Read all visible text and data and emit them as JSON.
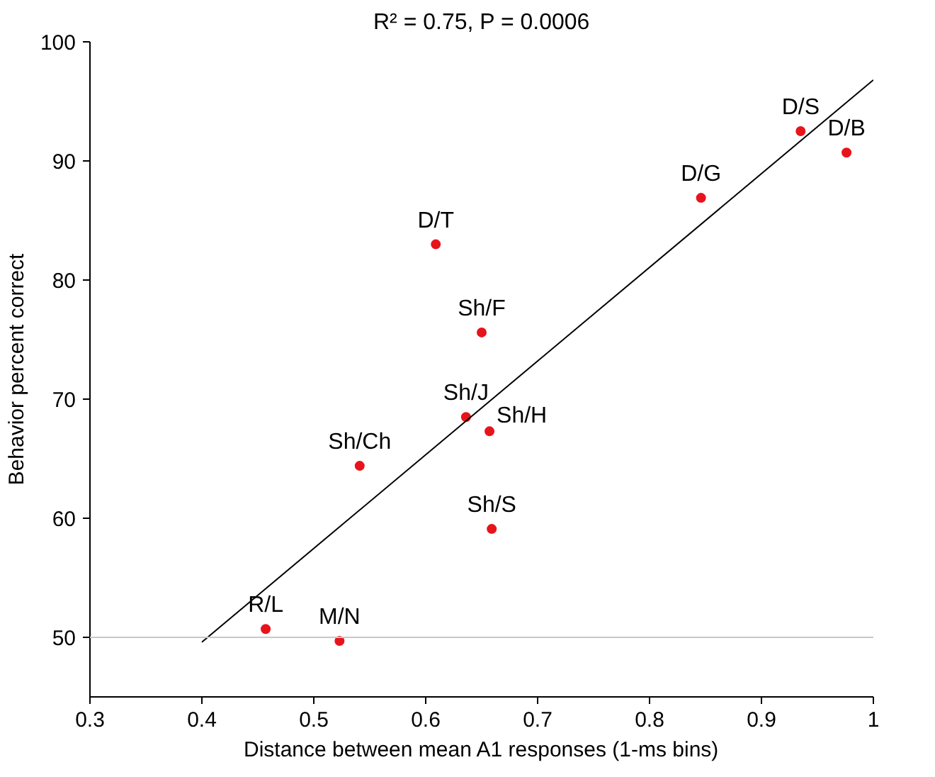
{
  "chart_data": {
    "type": "scatter",
    "title": "R² = 0.75, P = 0.0006",
    "xlabel": "Distance between mean A1 responses (1-ms bins)",
    "ylabel": "Behavior percent correct",
    "xlim": [
      0.3,
      1
    ],
    "ylim": [
      45,
      100
    ],
    "xticks": [
      0.3,
      0.4,
      0.5,
      0.6,
      0.7,
      0.8,
      0.9,
      {
        "value": 1,
        "label": "1"
      }
    ],
    "yticks": [
      50,
      60,
      70,
      80,
      90,
      100
    ],
    "grid": false,
    "series": [
      {
        "marker": "circle",
        "color": "#e8141c",
        "x": [
          0.457,
          0.523,
          0.541,
          0.636,
          0.657,
          0.659,
          0.609,
          0.65,
          0.846,
          0.935,
          0.976
        ],
        "values": [
          50.7,
          49.7,
          64.4,
          68.5,
          67.3,
          59.1,
          83.0,
          75.6,
          86.9,
          92.5,
          90.7
        ]
      },
      {
        "type": "line",
        "color": "#000000",
        "x": [
          0.4,
          1.0
        ],
        "values": [
          49.6,
          96.8
        ]
      }
    ],
    "ref_lines": [
      {
        "axis": "y",
        "value": 50,
        "color": "#c8c8c8"
      }
    ],
    "annotations": [
      {
        "text": "R/L",
        "x": 0.457,
        "y": 50.7
      },
      {
        "text": "M/N",
        "x": 0.523,
        "y": 49.7
      },
      {
        "text": "Sh/Ch",
        "x": 0.541,
        "y": 64.4
      },
      {
        "text": "Sh/J",
        "x": 0.636,
        "y": 68.5
      },
      {
        "text": "Sh/H",
        "x": 0.657,
        "y": 67.3
      },
      {
        "text": "Sh/S",
        "x": 0.659,
        "y": 59.1
      },
      {
        "text": "D/T",
        "x": 0.609,
        "y": 83.0
      },
      {
        "text": "Sh/F",
        "x": 0.65,
        "y": 75.6
      },
      {
        "text": "D/G",
        "x": 0.846,
        "y": 86.9
      },
      {
        "text": "D/S",
        "x": 0.935,
        "y": 92.5
      },
      {
        "text": "D/B",
        "x": 0.976,
        "y": 90.7
      }
    ]
  }
}
